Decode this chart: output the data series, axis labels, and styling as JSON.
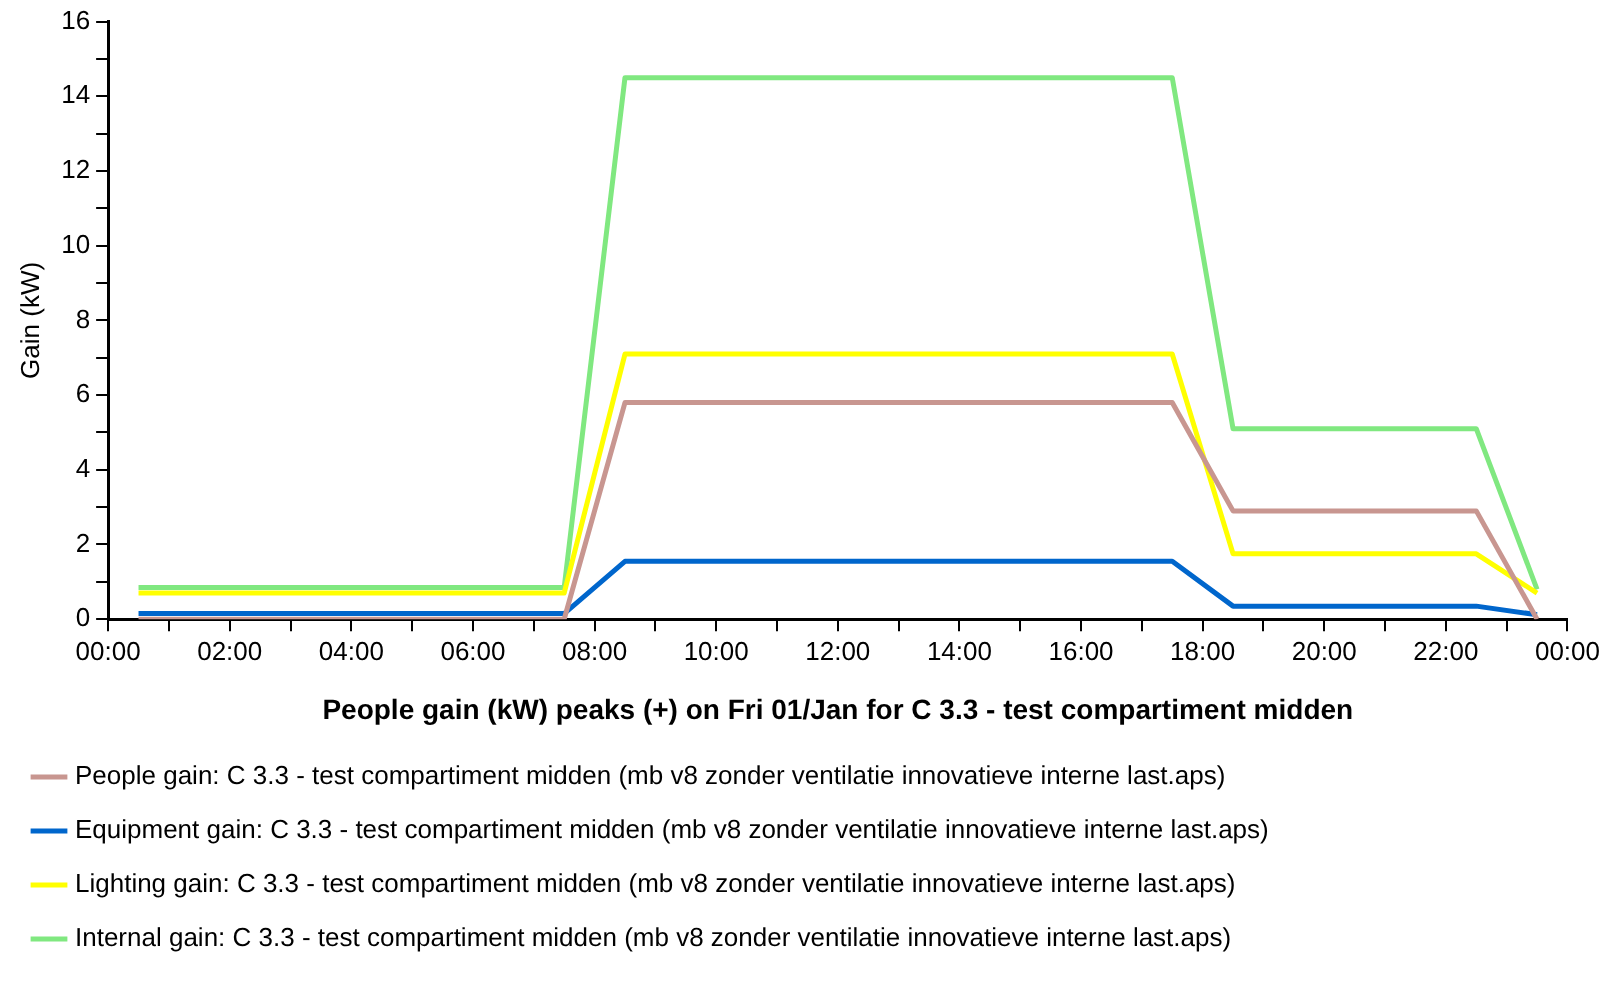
{
  "chart_data": {
    "type": "line",
    "ylabel": "Gain (kW)",
    "xlabel": "People gain (kW) peaks (+) on Fri 01/Jan for C 3.3 - test compartiment midden",
    "x": [
      0.5,
      7.5,
      8.5,
      17.5,
      18.5,
      22.5,
      23.5
    ],
    "series": [
      {
        "name": "People gain: C 3.3 - test compartiment midden (mb v8 zonder ventilatie innovatieve interne last.aps)",
        "color": "#c89690",
        "values": [
          0,
          0,
          5.8,
          5.8,
          2.9,
          2.9,
          0
        ]
      },
      {
        "name": "Equipment gain: C 3.3 - test compartiment midden (mb v8 zonder ventilatie innovatieve interne last.aps)",
        "color": "#0066cc",
        "values": [
          0.15,
          0.15,
          1.55,
          1.55,
          0.35,
          0.35,
          0.12
        ]
      },
      {
        "name": "Lighting gain: C 3.3 - test compartiment midden (mb v8 zonder ventilatie innovatieve interne last.aps)",
        "color": "#ffff00",
        "values": [
          0.7,
          0.7,
          7.1,
          7.1,
          1.75,
          1.75,
          0.7
        ]
      },
      {
        "name": "Internal gain: C 3.3 - test compartiment midden (mb v8 zonder ventilatie innovatieve interne last.aps)",
        "color": "#80e880",
        "values": [
          0.85,
          0.85,
          14.5,
          14.5,
          5.1,
          5.1,
          0.8
        ]
      }
    ],
    "xlim": [
      0,
      24
    ],
    "xticks": [
      {
        "value": 0,
        "label": "00:00"
      },
      {
        "value": 1,
        "label": null
      },
      {
        "value": 2,
        "label": "02:00"
      },
      {
        "value": 3,
        "label": null
      },
      {
        "value": 4,
        "label": "04:00"
      },
      {
        "value": 5,
        "label": null
      },
      {
        "value": 6,
        "label": "06:00"
      },
      {
        "value": 7,
        "label": null
      },
      {
        "value": 8,
        "label": "08:00"
      },
      {
        "value": 9,
        "label": null
      },
      {
        "value": 10,
        "label": "10:00"
      },
      {
        "value": 11,
        "label": null
      },
      {
        "value": 12,
        "label": "12:00"
      },
      {
        "value": 13,
        "label": null
      },
      {
        "value": 14,
        "label": "14:00"
      },
      {
        "value": 15,
        "label": null
      },
      {
        "value": 16,
        "label": "16:00"
      },
      {
        "value": 17,
        "label": null
      },
      {
        "value": 18,
        "label": "18:00"
      },
      {
        "value": 19,
        "label": null
      },
      {
        "value": 20,
        "label": "20:00"
      },
      {
        "value": 21,
        "label": null
      },
      {
        "value": 22,
        "label": "22:00"
      },
      {
        "value": 23,
        "label": null
      },
      {
        "value": 24,
        "label": "00:00"
      }
    ],
    "ylim": [
      0,
      16
    ],
    "yticks": [
      0,
      {
        "value": 1,
        "label": null
      },
      2,
      {
        "value": 3,
        "label": null
      },
      4,
      {
        "value": 5,
        "label": null
      },
      6,
      {
        "value": 7,
        "label": null
      },
      8,
      {
        "value": 9,
        "label": null
      },
      10,
      {
        "value": 11,
        "label": null
      },
      12,
      {
        "value": 13,
        "label": null
      },
      14,
      {
        "value": 15,
        "label": null
      },
      16
    ],
    "grid": false,
    "legend": "bottom",
    "marker": "none",
    "line_style": "solid"
  }
}
